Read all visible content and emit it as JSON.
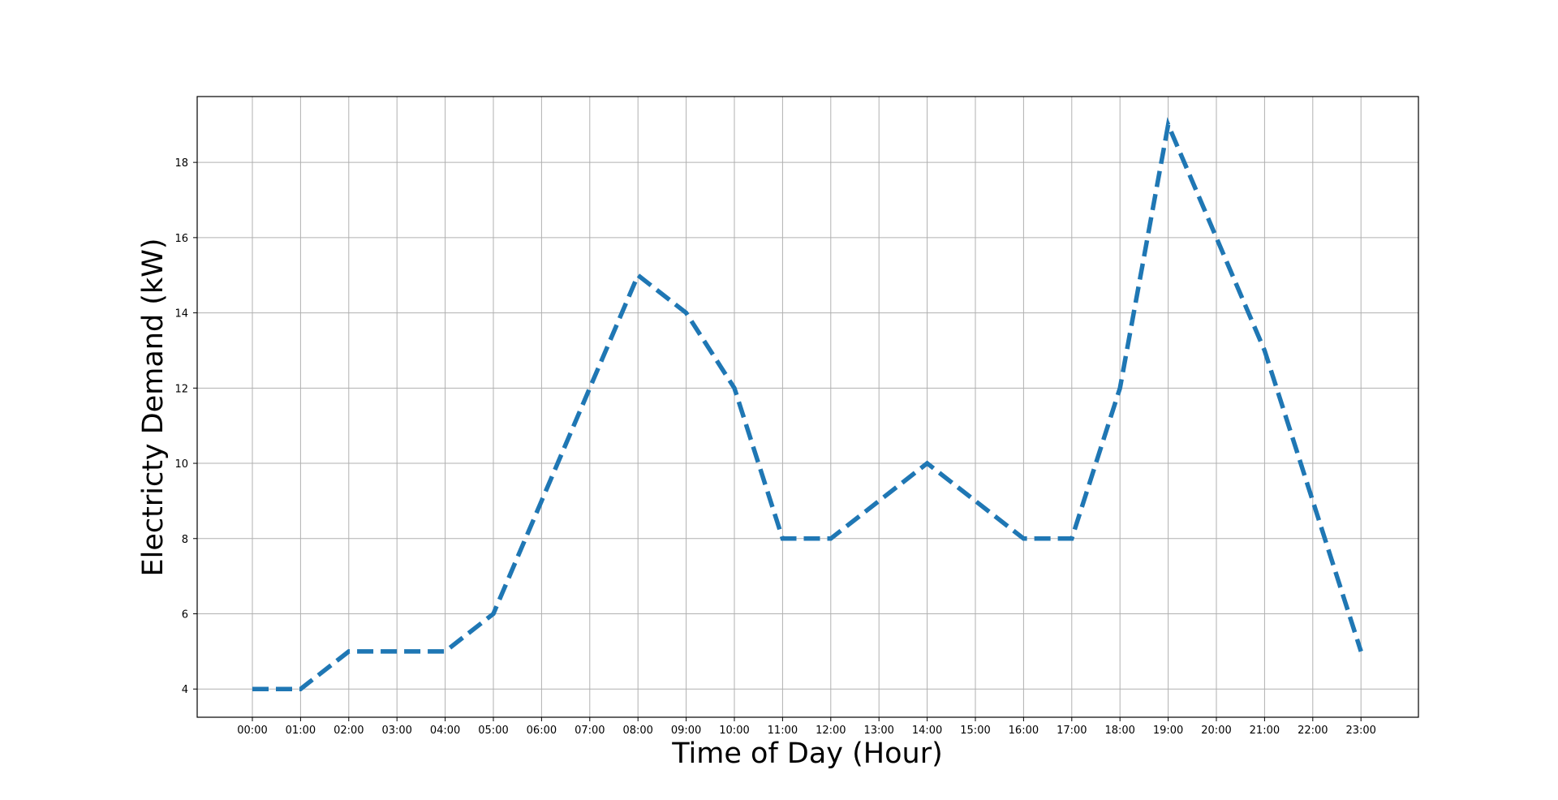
{
  "chart_data": {
    "type": "line",
    "title": "",
    "xlabel": "Time of Day (Hour)",
    "ylabel": "Electricty Demand (kW)",
    "x": [
      "00:00",
      "01:00",
      "02:00",
      "03:00",
      "04:00",
      "05:00",
      "06:00",
      "07:00",
      "08:00",
      "09:00",
      "10:00",
      "11:00",
      "12:00",
      "13:00",
      "14:00",
      "15:00",
      "16:00",
      "17:00",
      "18:00",
      "19:00",
      "20:00",
      "21:00",
      "22:00",
      "23:00"
    ],
    "series": [
      {
        "values": [
          4,
          4,
          5,
          5,
          5,
          6,
          9,
          12,
          15,
          14,
          12,
          8,
          8,
          9,
          10,
          9,
          8,
          8,
          12,
          19,
          16,
          13,
          9,
          5
        ],
        "color": "#1f77b4",
        "line_style": "dashed"
      }
    ],
    "yticks": [
      4,
      6,
      8,
      10,
      12,
      14,
      16,
      18
    ],
    "ylim": [
      3.25,
      19.75
    ],
    "grid": true,
    "legend": "none"
  }
}
